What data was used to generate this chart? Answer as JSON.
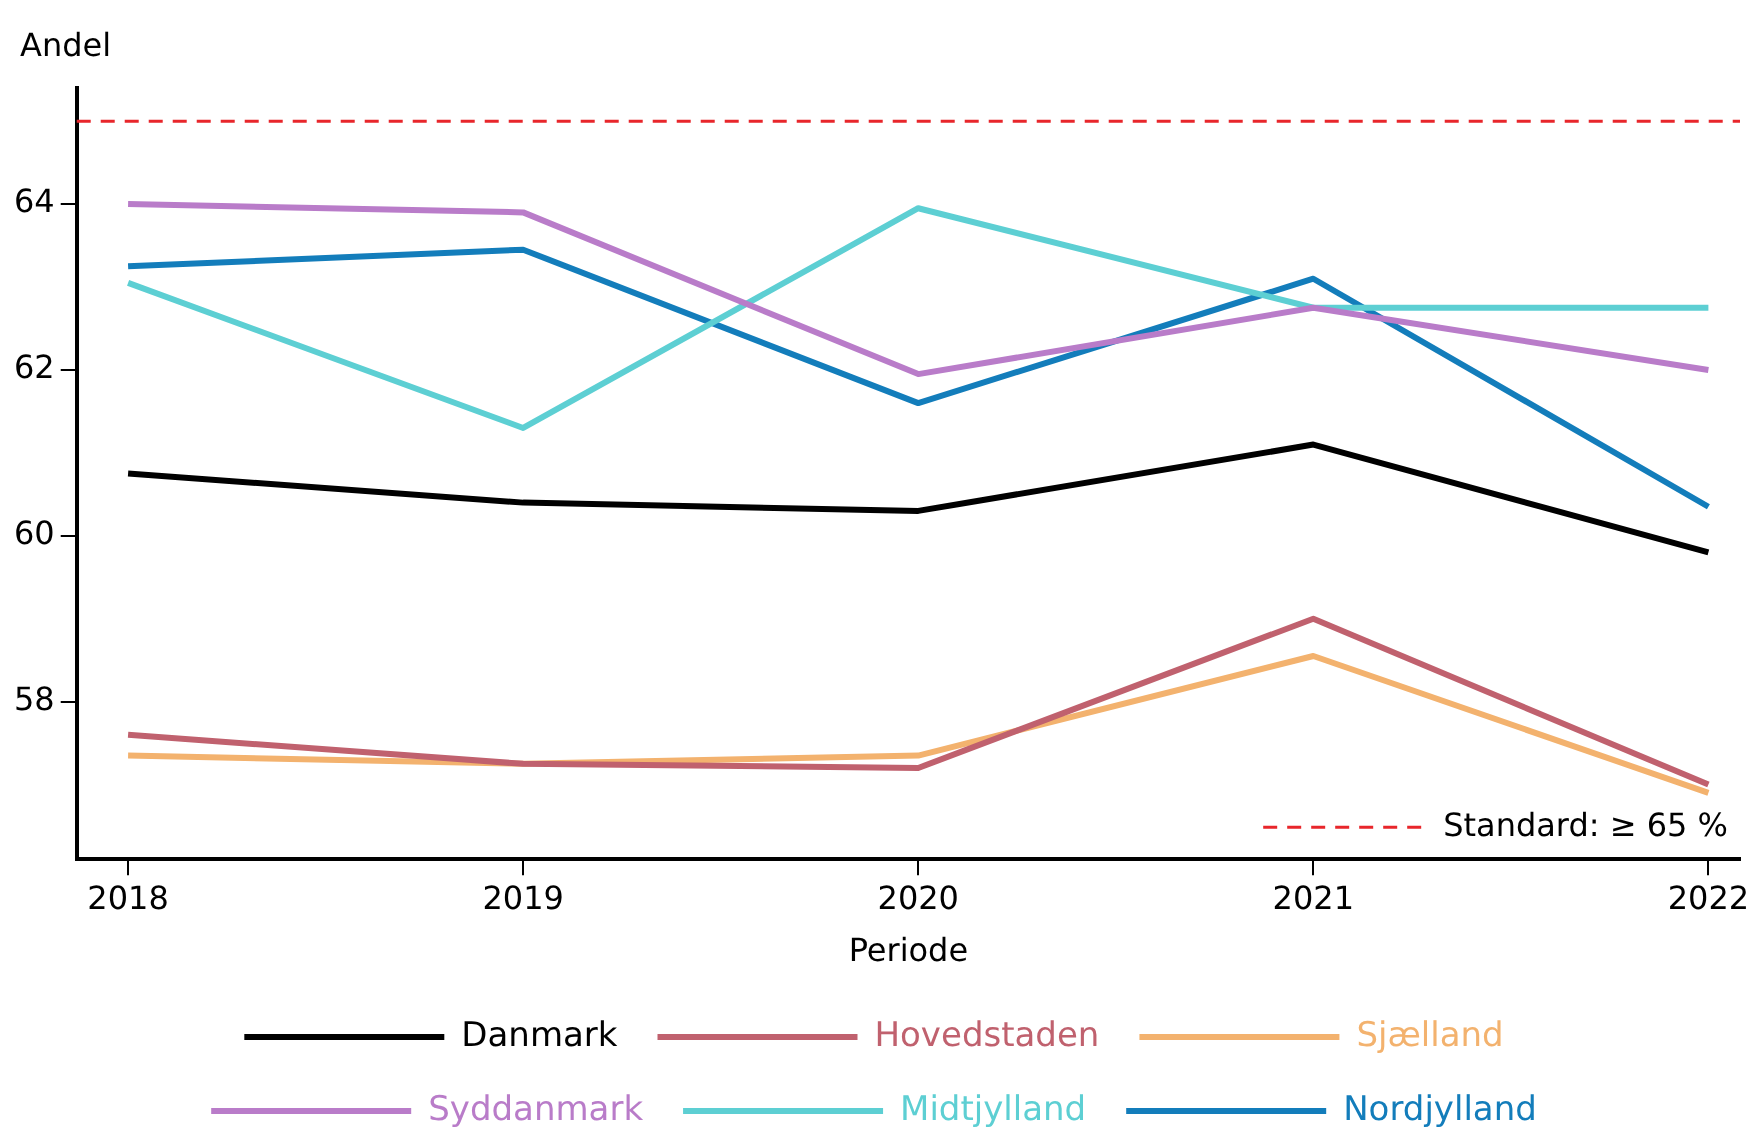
{
  "chart_data": {
    "type": "line",
    "xlabel": "Periode",
    "ylabel": "Andel",
    "x": [
      2018,
      2019,
      2020,
      2021,
      2022
    ],
    "series": [
      {
        "name": "Danmark",
        "color": "#000000",
        "values": [
          60.75,
          60.4,
          60.3,
          61.1,
          59.8
        ]
      },
      {
        "name": "Hovedstaden",
        "color": "#c0616e",
        "values": [
          57.6,
          57.25,
          57.2,
          59.0,
          57.0
        ]
      },
      {
        "name": "Sjælland",
        "color": "#f3b26e",
        "values": [
          57.35,
          57.25,
          57.35,
          58.55,
          56.9
        ]
      },
      {
        "name": "Syddanmark",
        "color": "#b97cc9",
        "values": [
          64.0,
          63.9,
          61.95,
          62.75,
          62.0
        ]
      },
      {
        "name": "Midtjylland",
        "color": "#5dcfd3",
        "values": [
          63.05,
          61.3,
          63.95,
          62.75,
          62.75
        ]
      },
      {
        "name": "Nordjylland",
        "color": "#137dbb",
        "values": [
          63.25,
          63.45,
          61.6,
          63.1,
          60.35
        ]
      }
    ],
    "xlim": [
      2017.87,
      2022.08
    ],
    "xticks": [
      2018,
      2019,
      2020,
      2021,
      2022
    ],
    "ylim": [
      56.1,
      65.4
    ],
    "yticks": [
      58,
      60,
      62,
      64
    ],
    "ref_lines": [
      {
        "axis": "y",
        "value": 65,
        "label": "Standard: ≥ 65 %",
        "color": "#e8262b",
        "line_style": "dashed"
      }
    ],
    "grid": false,
    "legend": "bottom",
    "marker": "none",
    "line_style": "solid"
  }
}
